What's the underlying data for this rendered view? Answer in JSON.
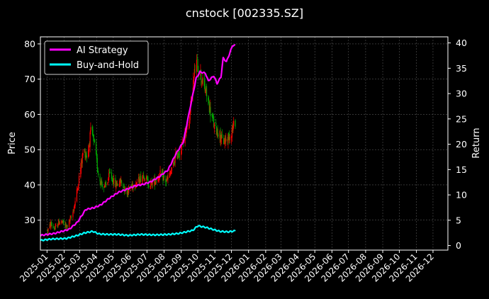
{
  "chart_data": {
    "type": "candlestick+line",
    "title": "cnstock [002335.SZ]",
    "ylabel_left": "Price",
    "ylabel_right": "Return",
    "ylim_left": [
      21.5,
      82
    ],
    "ylim_right": [
      -0.9,
      41.2
    ],
    "yticks_left": [
      30,
      40,
      50,
      60,
      70,
      80
    ],
    "yticks_right": [
      0,
      5,
      10,
      15,
      20,
      25,
      30,
      35,
      40
    ],
    "xlim": [
      "2024-12-20",
      "2026-12-28"
    ],
    "xticks": [
      "2025-01",
      "2025-02",
      "2025-03",
      "2025-04",
      "2025-05",
      "2025-06",
      "2025-07",
      "2025-08",
      "2025-09",
      "2025-10",
      "2025-11",
      "2025-12",
      "2026-01",
      "2026-02",
      "2026-03",
      "2026-04",
      "2026-05",
      "2026-06",
      "2026-07",
      "2026-08",
      "2026-09",
      "2026-10",
      "2026-11",
      "2026-12"
    ],
    "grid": true,
    "legend_position": "top-left",
    "colors": {
      "up": "#ff0000",
      "down": "#00aa00",
      "ai": "#ff00ff",
      "bh": "#00ffff"
    },
    "price_path": [
      [
        "2025-01-02",
        27
      ],
      [
        "2025-01-08",
        29
      ],
      [
        "2025-01-15",
        27.5
      ],
      [
        "2025-01-25",
        30
      ],
      [
        "2025-02-05",
        28
      ],
      [
        "2025-02-15",
        31
      ],
      [
        "2025-02-22",
        36
      ],
      [
        "2025-03-01",
        43
      ],
      [
        "2025-03-08",
        50
      ],
      [
        "2025-03-15",
        48
      ],
      [
        "2025-03-22",
        56
      ],
      [
        "2025-03-28",
        51
      ],
      [
        "2025-04-05",
        42
      ],
      [
        "2025-04-15",
        39
      ],
      [
        "2025-04-25",
        43
      ],
      [
        "2025-05-05",
        40
      ],
      [
        "2025-05-15",
        41
      ],
      [
        "2025-05-25",
        38
      ],
      [
        "2025-06-05",
        40
      ],
      [
        "2025-06-15",
        41
      ],
      [
        "2025-06-25",
        43
      ],
      [
        "2025-07-05",
        40
      ],
      [
        "2025-07-15",
        41
      ],
      [
        "2025-07-25",
        43
      ],
      [
        "2025-08-05",
        41
      ],
      [
        "2025-08-15",
        44
      ],
      [
        "2025-08-22",
        48
      ],
      [
        "2025-09-01",
        50
      ],
      [
        "2025-09-08",
        55
      ],
      [
        "2025-09-15",
        58
      ],
      [
        "2025-09-22",
        68
      ],
      [
        "2025-09-28",
        75
      ],
      [
        "2025-10-05",
        72
      ],
      [
        "2025-10-10",
        69
      ],
      [
        "2025-10-18",
        65
      ],
      [
        "2025-10-25",
        60
      ],
      [
        "2025-11-01",
        56
      ],
      [
        "2025-11-08",
        55
      ],
      [
        "2025-11-15",
        52
      ],
      [
        "2025-11-22",
        53
      ],
      [
        "2025-11-28",
        54
      ],
      [
        "2025-12-03",
        56
      ],
      [
        "2025-12-08",
        58
      ]
    ],
    "series": [
      {
        "name": "AI Strategy",
        "axis": "right",
        "points": [
          [
            "2024-12-20",
            2.0
          ],
          [
            "2025-01-15",
            2.4
          ],
          [
            "2025-02-10",
            3.2
          ],
          [
            "2025-02-25",
            4.6
          ],
          [
            "2025-03-12",
            7.1
          ],
          [
            "2025-03-28",
            7.5
          ],
          [
            "2025-04-08",
            8.0
          ],
          [
            "2025-04-22",
            9.2
          ],
          [
            "2025-05-10",
            10.5
          ],
          [
            "2025-05-25",
            11.1
          ],
          [
            "2025-06-10",
            11.8
          ],
          [
            "2025-06-25",
            12.1
          ],
          [
            "2025-07-08",
            12.6
          ],
          [
            "2025-07-22",
            13.5
          ],
          [
            "2025-08-08",
            14.9
          ],
          [
            "2025-08-22",
            18.0
          ],
          [
            "2025-09-05",
            20.5
          ],
          [
            "2025-09-15",
            26.0
          ],
          [
            "2025-09-28",
            33.0
          ],
          [
            "2025-10-05",
            34.3
          ],
          [
            "2025-10-15",
            34.0
          ],
          [
            "2025-10-20",
            32.5
          ],
          [
            "2025-10-30",
            33.5
          ],
          [
            "2025-11-05",
            32.0
          ],
          [
            "2025-11-12",
            33.3
          ],
          [
            "2025-11-16",
            37.0
          ],
          [
            "2025-11-22",
            36.3
          ],
          [
            "2025-11-28",
            38.0
          ],
          [
            "2025-12-03",
            39.5
          ],
          [
            "2025-12-08",
            39.5
          ]
        ]
      },
      {
        "name": "Buy-and-Hold",
        "axis": "right",
        "points": [
          [
            "2024-12-20",
            1.0
          ],
          [
            "2025-01-10",
            1.3
          ],
          [
            "2025-02-05",
            1.4
          ],
          [
            "2025-02-25",
            2.0
          ],
          [
            "2025-03-10",
            2.5
          ],
          [
            "2025-03-25",
            2.8
          ],
          [
            "2025-04-05",
            2.3
          ],
          [
            "2025-04-20",
            2.2
          ],
          [
            "2025-05-10",
            2.2
          ],
          [
            "2025-05-28",
            2.0
          ],
          [
            "2025-06-20",
            2.2
          ],
          [
            "2025-07-15",
            2.1
          ],
          [
            "2025-08-10",
            2.2
          ],
          [
            "2025-08-28",
            2.4
          ],
          [
            "2025-09-10",
            2.7
          ],
          [
            "2025-09-22",
            3.0
          ],
          [
            "2025-10-01",
            3.9
          ],
          [
            "2025-10-15",
            3.6
          ],
          [
            "2025-10-28",
            3.2
          ],
          [
            "2025-11-10",
            2.8
          ],
          [
            "2025-11-25",
            2.7
          ],
          [
            "2025-12-08",
            2.9
          ]
        ]
      }
    ]
  }
}
